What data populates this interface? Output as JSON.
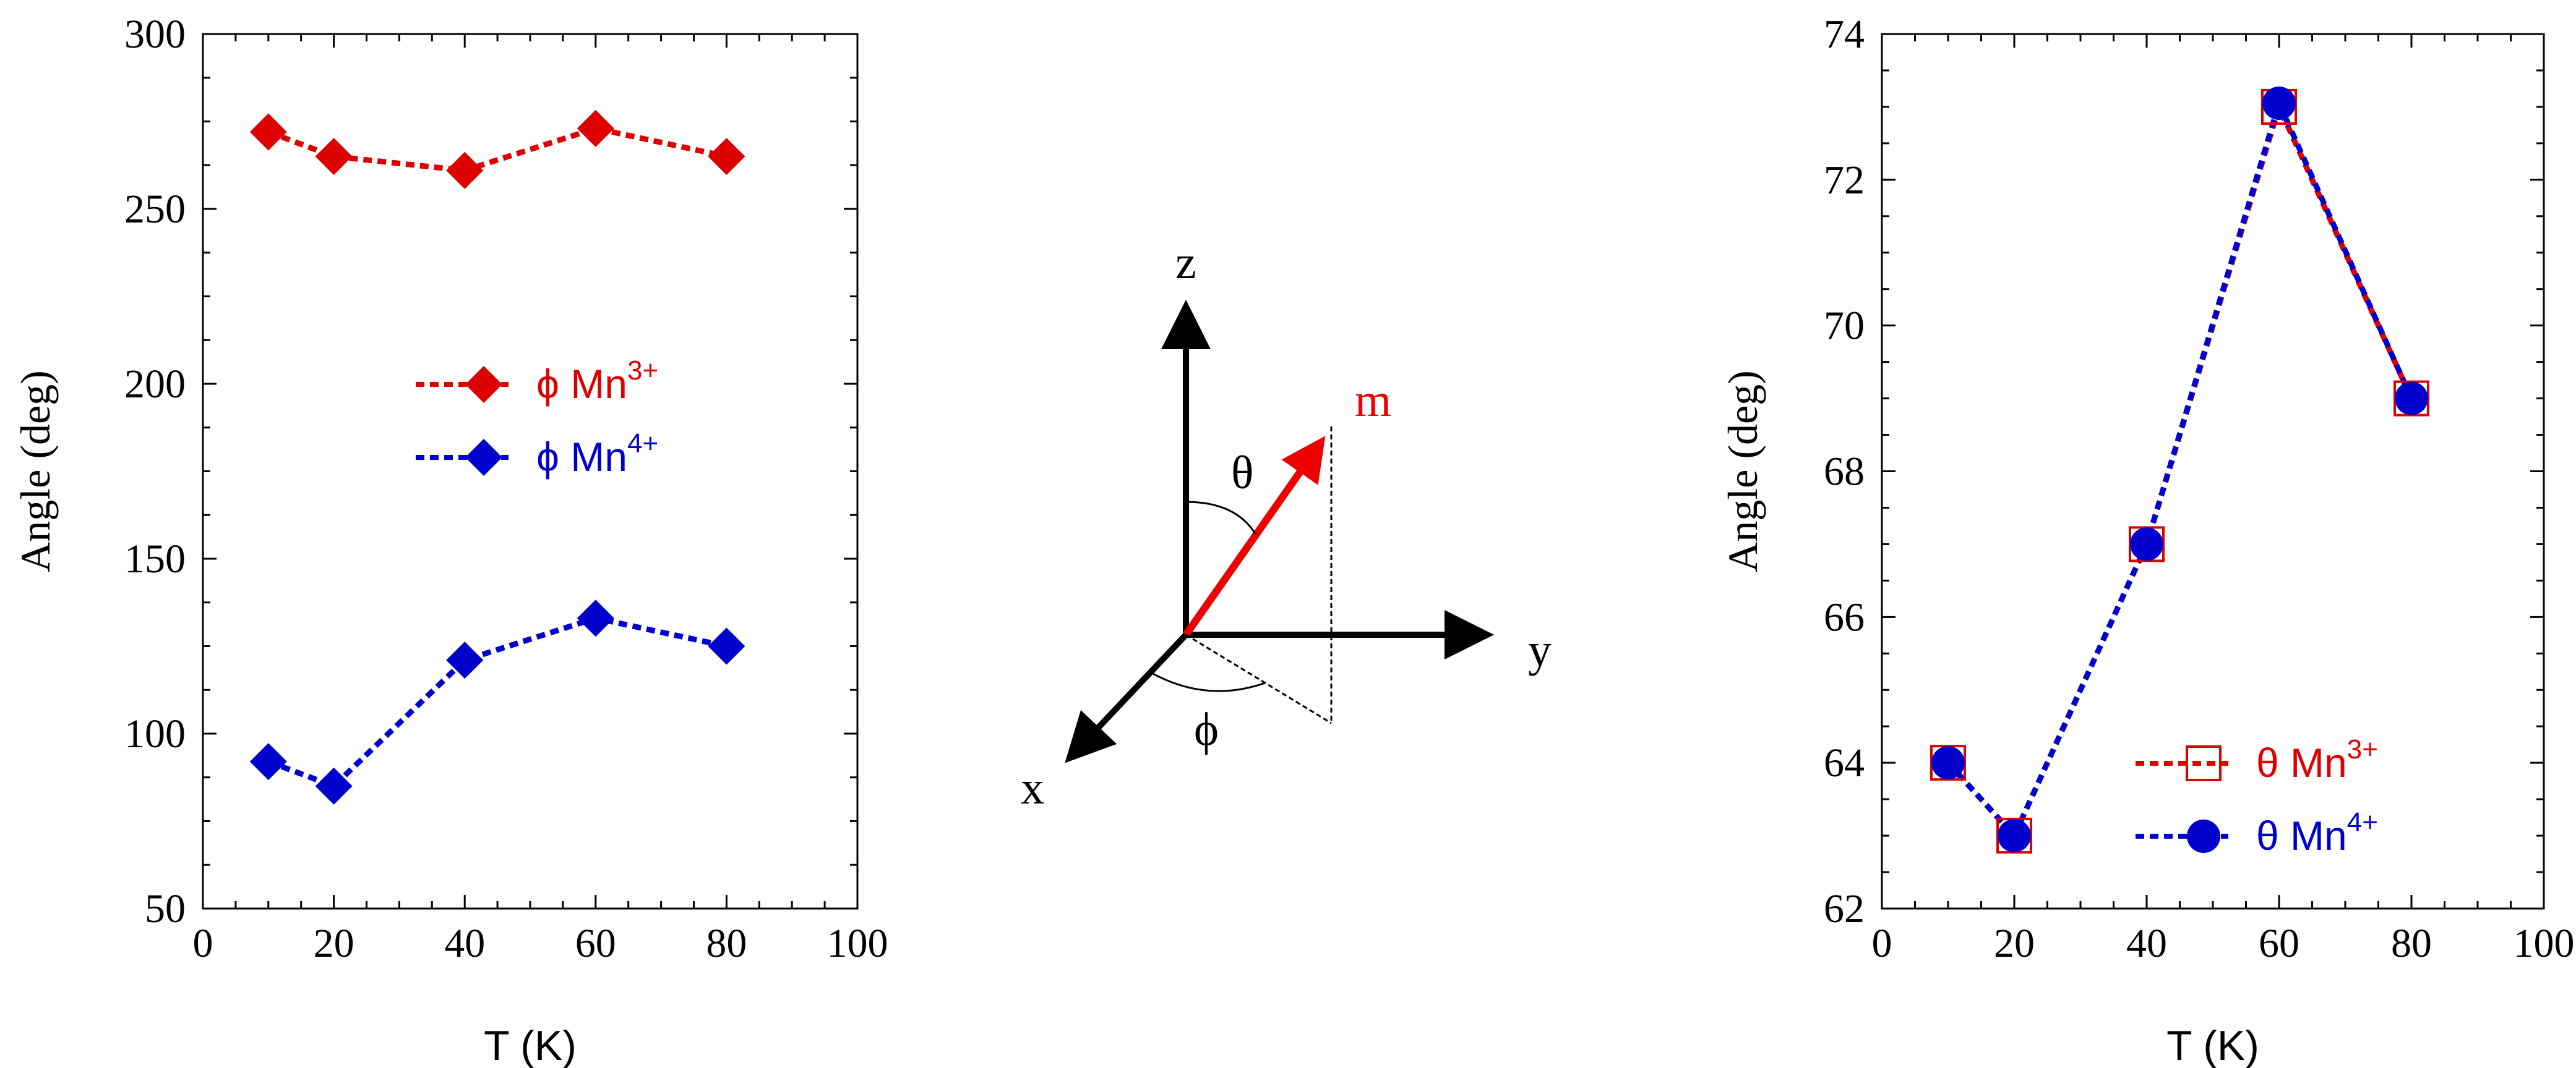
{
  "chart_data": [
    {
      "type": "line",
      "xlabel": "T (K)",
      "ylabel": "Angle (deg)",
      "xlim": [
        0,
        100
      ],
      "ylim": [
        50,
        300
      ],
      "x_ticks": [
        0,
        20,
        40,
        60,
        80,
        100
      ],
      "y_ticks": [
        50,
        100,
        150,
        200,
        250,
        300
      ],
      "grid": false,
      "legend_position": "center-right",
      "series": [
        {
          "name": "ϕ Mn",
          "sup": "3+",
          "color": "#dd0000",
          "marker": "diamond",
          "x": [
            10,
            20,
            40,
            60,
            80
          ],
          "y": [
            272,
            265,
            261,
            273,
            265
          ]
        },
        {
          "name": "ϕ Mn",
          "sup": "4+",
          "color": "#0000cc",
          "marker": "diamond",
          "x": [
            10,
            20,
            40,
            60,
            80
          ],
          "y": [
            92,
            85,
            121,
            133,
            125
          ]
        }
      ]
    },
    {
      "type": "line",
      "xlabel": "T (K)",
      "ylabel": "Angle (deg)",
      "xlim": [
        0,
        100
      ],
      "ylim": [
        62,
        74
      ],
      "x_ticks": [
        0,
        20,
        40,
        60,
        80,
        100
      ],
      "y_ticks": [
        62,
        64,
        66,
        68,
        70,
        72,
        74
      ],
      "grid": false,
      "legend_position": "bottom-right",
      "series": [
        {
          "name": "θ Mn",
          "sup": "3+",
          "color": "#dd0000",
          "marker": "open-square",
          "x": [
            10,
            20,
            40,
            60,
            80
          ],
          "y": [
            64,
            63,
            67,
            73,
            69
          ]
        },
        {
          "name": "θ Mn",
          "sup": "4+",
          "color": "#0000cc",
          "marker": "circle",
          "x": [
            10,
            20,
            40,
            60,
            80
          ],
          "y": [
            64,
            63,
            67,
            73.05,
            69
          ]
        }
      ]
    }
  ],
  "diagram": {
    "axis_z": "z",
    "axis_y": "y",
    "axis_x": "x",
    "vector": "m",
    "polar_angle": "θ",
    "azimuth_angle": "ϕ",
    "vector_color": "#ee0000"
  }
}
